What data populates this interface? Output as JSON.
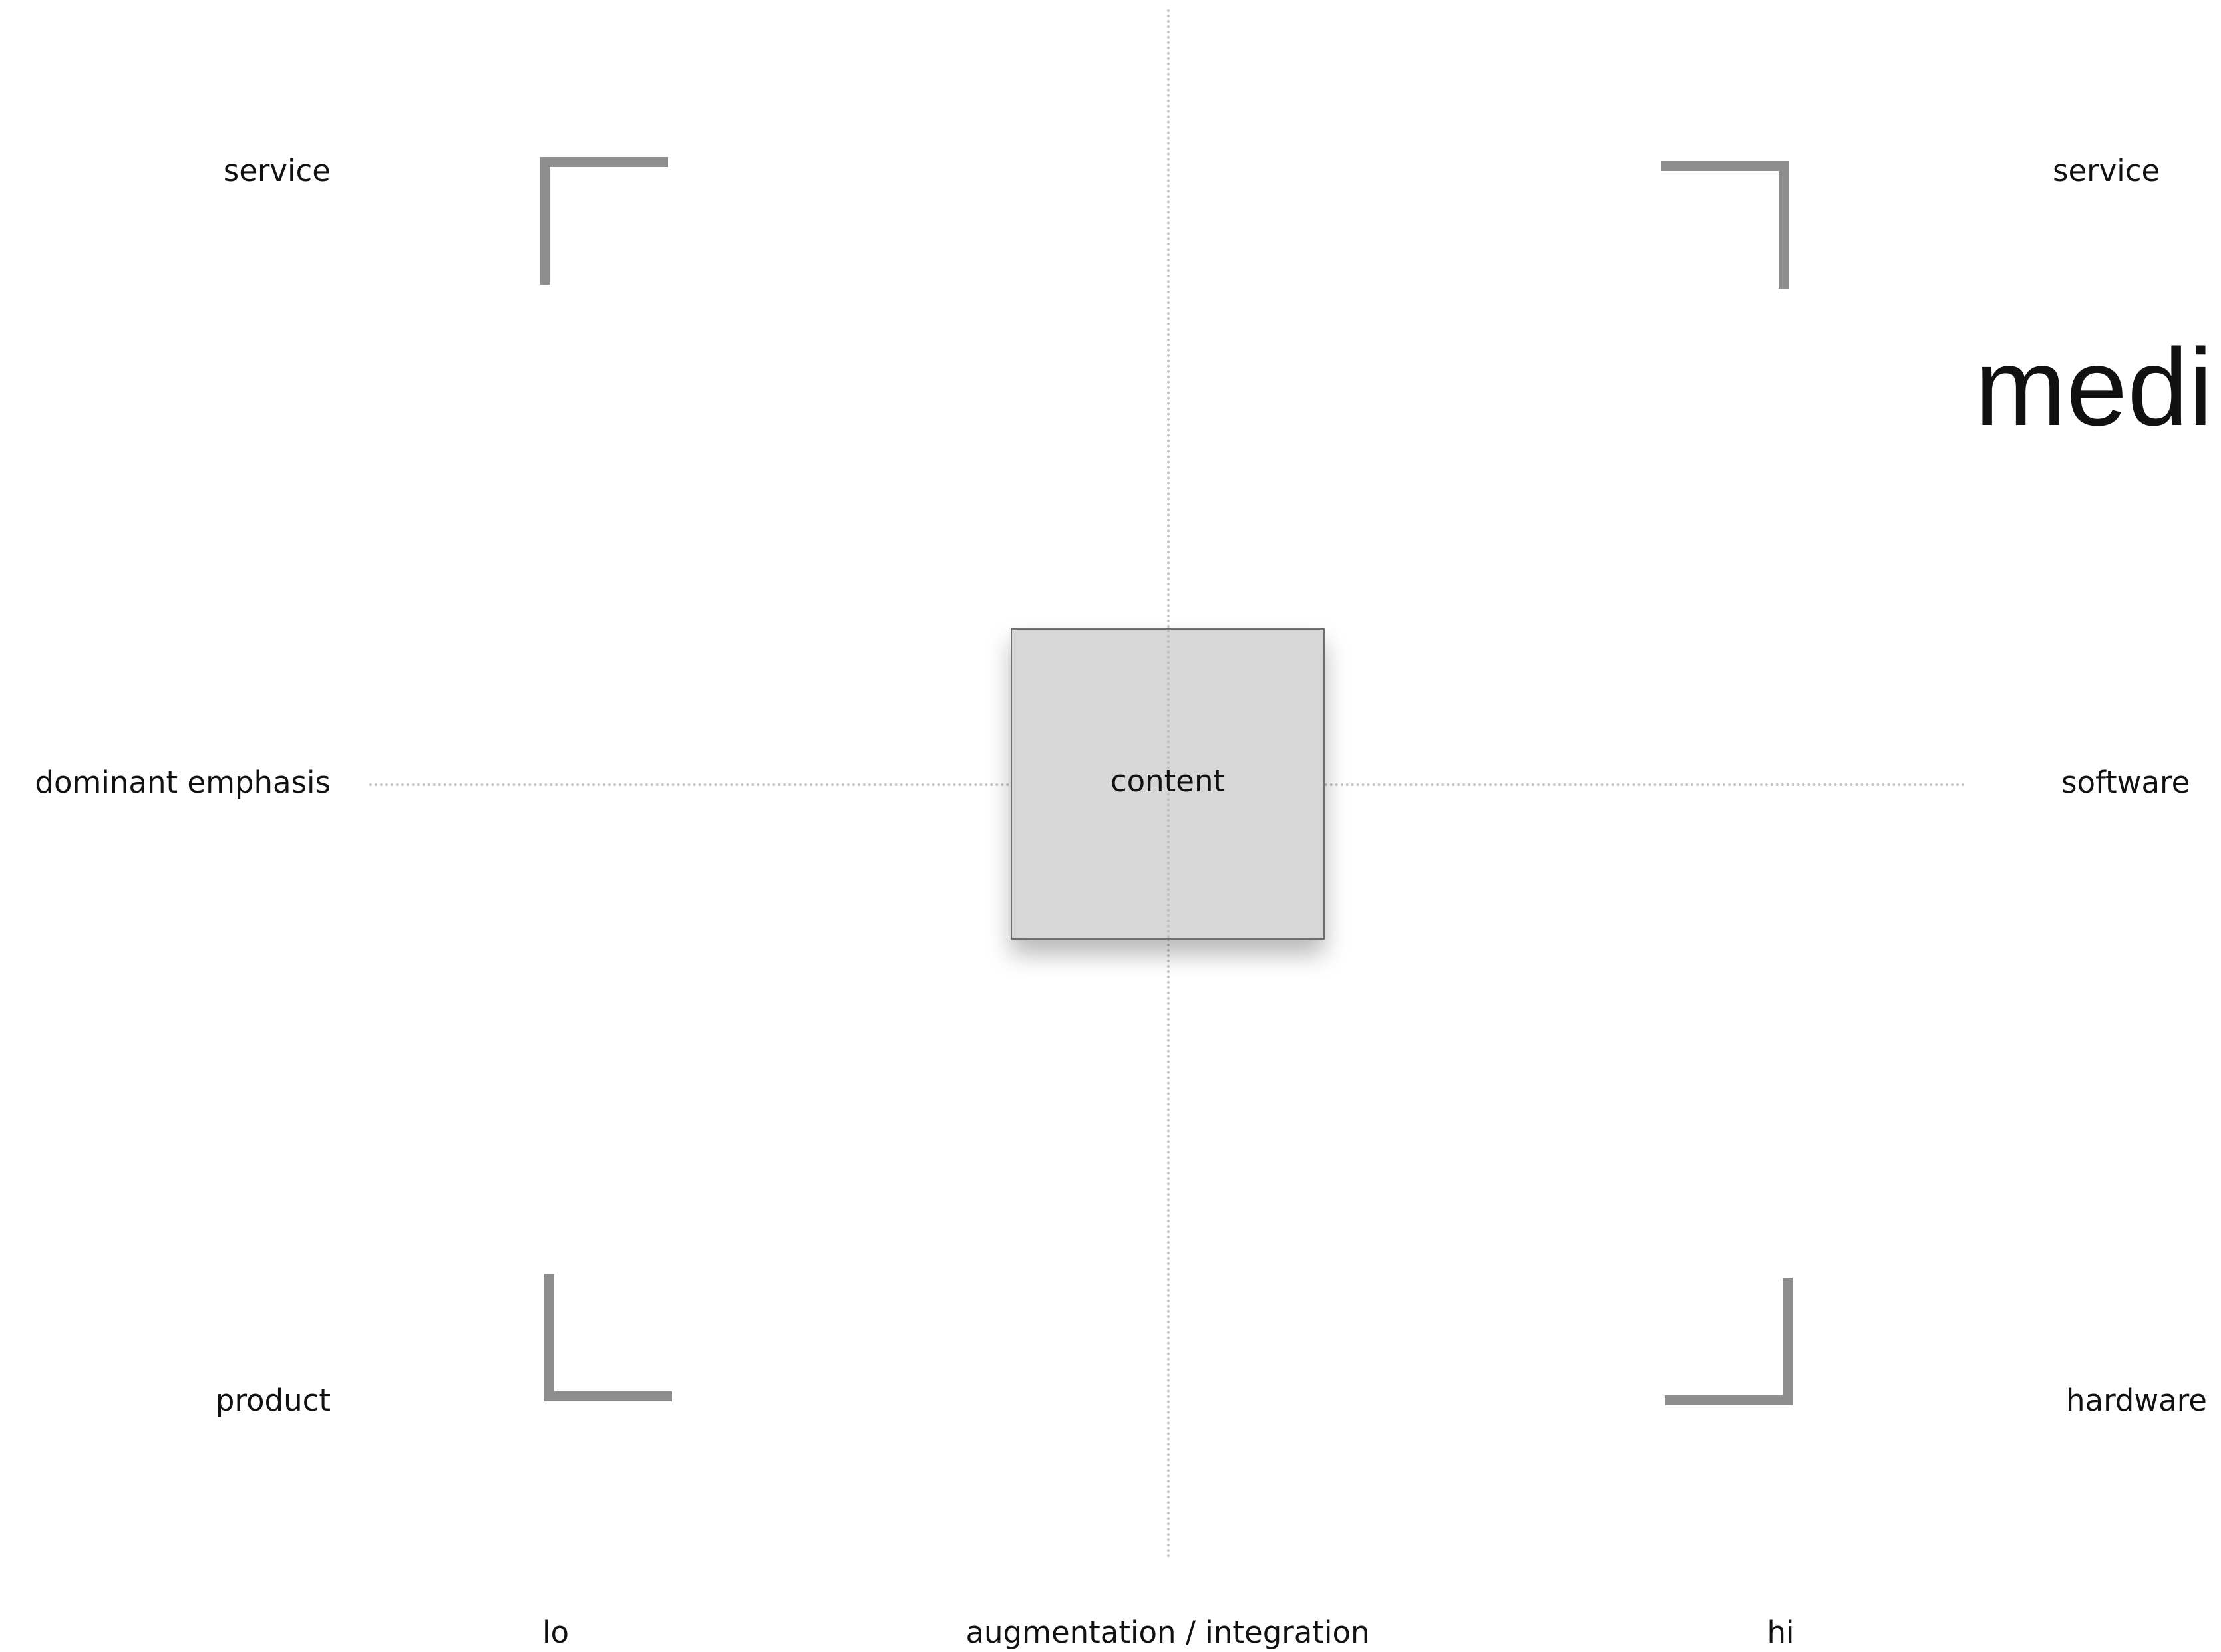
{
  "diagram": {
    "title": "medi",
    "center_label": "content",
    "left_labels": {
      "top": "service",
      "middle": "dominant emphasis",
      "bottom": "product"
    },
    "right_labels": {
      "top": "service",
      "middle": "software",
      "bottom": "hardware"
    },
    "bottom_axis": {
      "low": "lo",
      "title": "augmentation / integration",
      "high": "hi"
    }
  },
  "colors": {
    "bracket": "#8e8e8e",
    "axis": "#c4c4c4",
    "box_fill": "#d7d7d7"
  }
}
